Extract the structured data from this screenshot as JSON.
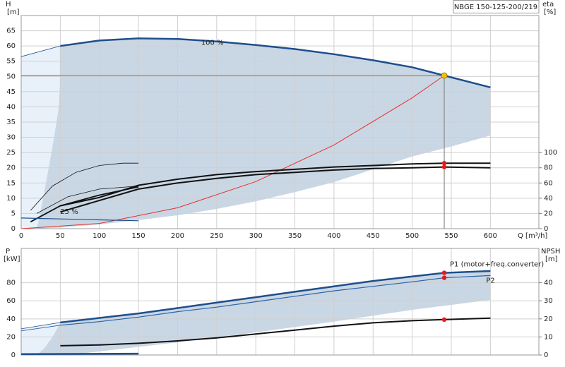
{
  "chart_data": [
    {
      "type": "line",
      "title": "NBGE 150-125-200/219",
      "ylabel": "H",
      "yunit": "[m]",
      "y2label": "eta",
      "y2unit": "[%]",
      "xlabel": "Q [m³/h]",
      "xlim": [
        0,
        662
      ],
      "xticks": [
        0,
        50,
        100,
        150,
        200,
        250,
        300,
        350,
        400,
        450,
        500,
        550,
        600
      ],
      "xtick_labels": true,
      "ylim": [
        0,
        70
      ],
      "yticks": [
        0,
        5,
        10,
        15,
        20,
        25,
        30,
        35,
        40,
        45,
        50,
        55,
        60,
        65
      ],
      "y2lim": [
        0,
        280
      ],
      "y2ticks": [
        0,
        20,
        40,
        60,
        80,
        100
      ],
      "grid": true,
      "annotations": [
        "25 %"
      ],
      "duty_point": {
        "x": 541,
        "y": 50.3,
        "color": "#f5c400",
        "line_color": "#8a8a8a"
      },
      "duty_marker_color": "#e21b1b",
      "areas": [
        {
          "color": "#c9d7e5",
          "x": [
            50,
            100,
            150,
            200,
            250,
            300,
            350,
            400,
            450,
            500,
            541,
            600,
            600,
            550,
            500,
            450,
            400,
            350,
            300,
            250,
            200,
            150,
            100,
            50,
            20,
            28,
            35,
            42,
            48,
            50
          ],
          "values": [
            60,
            61.8,
            62.5,
            62.3,
            61.5,
            60.3,
            59,
            57.3,
            55.3,
            53,
            50.3,
            46.4,
            30.6,
            27,
            23.7,
            19.5,
            15.3,
            12,
            9,
            6.5,
            4.4,
            2.8,
            1.4,
            0.4,
            0,
            10,
            20,
            30,
            40,
            50
          ]
        },
        {
          "color": "#e8f1fa",
          "x": [
            0,
            50,
            50,
            48,
            42,
            35,
            28,
            20,
            0
          ],
          "values": [
            56.5,
            60,
            50,
            40,
            30,
            20,
            10,
            0,
            0
          ]
        }
      ],
      "series": [
        {
          "color": "#1f4e8c",
          "width": 0.8,
          "x": [
            0,
            50
          ],
          "values": [
            56.5,
            60
          ]
        },
        {
          "name": "100 %",
          "color": "#1f4e8c",
          "width": 2.5,
          "x": [
            50,
            100,
            150,
            200,
            250,
            300,
            350,
            400,
            450,
            500,
            541,
            600
          ],
          "values": [
            60,
            61.8,
            62.5,
            62.3,
            61.5,
            60.3,
            59,
            57.3,
            55.3,
            53,
            50.3,
            46.4
          ]
        },
        {
          "color": "#e8312a",
          "width": 1,
          "x": [
            0,
            100,
            200,
            300,
            400,
            500,
            541
          ],
          "values": [
            0,
            1.72,
            6.87,
            15.46,
            27.49,
            42.95,
            50.3
          ]
        },
        {
          "axis": "y2",
          "color": "#111111",
          "width": 2,
          "x": [
            50,
            100,
            150,
            200,
            250,
            300,
            350,
            400,
            450,
            500,
            541,
            600
          ],
          "values": [
            30,
            41,
            57,
            65,
            71,
            75,
            78,
            81,
            83,
            85,
            86,
            86
          ]
        },
        {
          "axis": "y2",
          "color": "#111111",
          "width": 2,
          "x": [
            50,
            100,
            150,
            200,
            250,
            300,
            350,
            400,
            450,
            500,
            541,
            600
          ],
          "values": [
            22,
            37,
            52,
            60,
            66,
            71,
            74,
            77,
            79,
            80,
            81,
            80
          ]
        },
        {
          "axis": "y2",
          "color": "#111111",
          "width": 0.8,
          "x": [
            12,
            40,
            70,
            100,
            130,
            150
          ],
          "values": [
            24,
            56,
            74,
            83,
            86,
            86
          ]
        },
        {
          "axis": "y2",
          "color": "#111111",
          "width": 0.8,
          "x": [
            20,
            60,
            100,
            150
          ],
          "values": [
            20,
            42,
            52,
            56
          ]
        },
        {
          "axis": "y2",
          "color": "#111111",
          "width": 1.8,
          "x": [
            12,
            50,
            100,
            150
          ],
          "values": [
            9,
            30,
            44,
            55
          ]
        },
        {
          "color": "#1f4e8c",
          "width": 1.2,
          "x": [
            0,
            50,
            100,
            150
          ],
          "values": [
            3.5,
            3.2,
            2.9,
            2.6
          ]
        }
      ]
    },
    {
      "type": "line",
      "ylabel": "P",
      "yunit": "[kW]",
      "y2label": "NPSH",
      "y2unit": "[m]",
      "xlim": [
        0,
        662
      ],
      "xticks": [
        0,
        50,
        100,
        150,
        200,
        250,
        300,
        350,
        400,
        450,
        500,
        550,
        600
      ],
      "xtick_labels": false,
      "ylim": [
        0,
        118
      ],
      "yticks": [
        0,
        20,
        40,
        60,
        80
      ],
      "y2lim": [
        0,
        59
      ],
      "y2ticks": [
        0,
        10,
        20,
        30,
        40
      ],
      "grid": true,
      "duty_x": 541,
      "duty_marker_color": "#e21b1b",
      "areas": [
        {
          "color": "#c9d7e5",
          "x": [
            50,
            100,
            150,
            200,
            250,
            300,
            350,
            400,
            450,
            500,
            541,
            600,
            600,
            500,
            400,
            300,
            200,
            150,
            100,
            60,
            20,
            30,
            40
          ],
          "values": [
            36,
            41,
            46,
            52,
            58,
            64,
            70,
            76,
            82,
            87,
            91,
            93,
            61,
            50,
            37,
            25,
            14,
            9,
            4,
            0,
            0,
            8,
            20
          ]
        },
        {
          "color": "#e8f1fa",
          "x": [
            0,
            50,
            40,
            30,
            20,
            0
          ],
          "values": [
            29,
            36,
            20,
            8,
            0,
            0
          ]
        }
      ],
      "series": [
        {
          "color": "#1f4e8c",
          "width": 0.8,
          "x": [
            0,
            50
          ],
          "values": [
            29,
            36
          ]
        },
        {
          "color": "#2a62a8",
          "width": 0.8,
          "x": [
            0,
            50
          ],
          "values": [
            26.7,
            33
          ]
        },
        {
          "name": "P1 (motor+freq.converter)",
          "color": "#1f4e8c",
          "width": 2.5,
          "x": [
            50,
            100,
            150,
            200,
            250,
            300,
            350,
            400,
            450,
            500,
            541,
            600
          ],
          "values": [
            36,
            41,
            46,
            52,
            58,
            64,
            70,
            76,
            82,
            87,
            91,
            93
          ]
        },
        {
          "name": "P2",
          "color": "#2a62a8",
          "width": 1.2,
          "x": [
            50,
            100,
            150,
            200,
            250,
            300,
            350,
            400,
            450,
            500,
            541,
            600
          ],
          "values": [
            33,
            37,
            42,
            48,
            53,
            59,
            65,
            71,
            76,
            81,
            85.5,
            88
          ]
        },
        {
          "axis": "y2",
          "color": "#111111",
          "width": 2,
          "x": [
            50,
            100,
            150,
            200,
            250,
            300,
            350,
            400,
            450,
            500,
            541,
            600
          ],
          "values": [
            5.1,
            5.6,
            6.5,
            7.8,
            9.5,
            11.6,
            13.8,
            16,
            17.8,
            19,
            19.6,
            20.4
          ]
        },
        {
          "color": "#1f4e8c",
          "width": 2.5,
          "x": [
            0,
            150
          ],
          "values": [
            1,
            1.5
          ]
        }
      ]
    }
  ]
}
